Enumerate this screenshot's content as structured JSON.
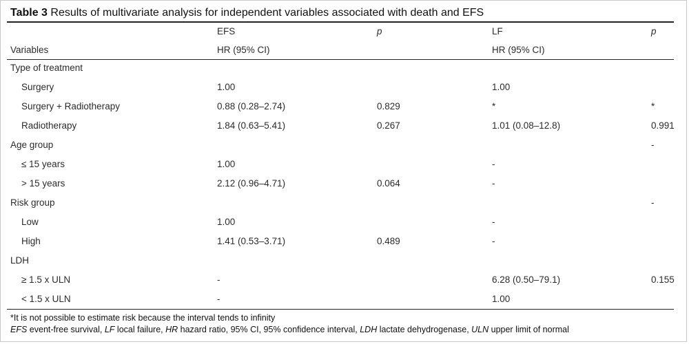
{
  "caption": {
    "label": "Table 3",
    "text": "Results of multivariate analysis for independent variables associated with death and EFS"
  },
  "headers": {
    "efs": "EFS",
    "p1": "p",
    "lf": "LF",
    "p2": "p",
    "variables": "Variables",
    "efs_hr": "HR (95% CI)",
    "lf_hr": "HR (95% CI)"
  },
  "rows": [
    {
      "label": "Type of treatment",
      "indent": false,
      "efs": "",
      "p1": "",
      "lf": "",
      "p2": ""
    },
    {
      "label": "Surgery",
      "indent": true,
      "efs": "1.00",
      "p1": "",
      "lf": "1.00",
      "p2": ""
    },
    {
      "label": "Surgery + Radiotherapy",
      "indent": true,
      "efs": "0.88 (0.28–2.74)",
      "p1": "0.829",
      "lf": "*",
      "p2": "*"
    },
    {
      "label": "Radiotherapy",
      "indent": true,
      "efs": "1.84 (0.63–5.41)",
      "p1": "0.267",
      "lf": "1.01 (0.08–12.8)",
      "p2": "0.991"
    },
    {
      "label": "Age group",
      "indent": false,
      "efs": "",
      "p1": "",
      "lf": "",
      "p2": "-"
    },
    {
      "label": "≤ 15 years",
      "indent": true,
      "efs": "1.00",
      "p1": "",
      "lf": "-",
      "p2": ""
    },
    {
      "label": "> 15 years",
      "indent": true,
      "efs": "2.12 (0.96–4.71)",
      "p1": "0.064",
      "lf": "-",
      "p2": ""
    },
    {
      "label": "Risk group",
      "indent": false,
      "efs": "",
      "p1": "",
      "lf": "",
      "p2": "-"
    },
    {
      "label": "Low",
      "indent": true,
      "efs": "1.00",
      "p1": "",
      "lf": "-",
      "p2": ""
    },
    {
      "label": "High",
      "indent": true,
      "efs": "1.41 (0.53–3.71)",
      "p1": "0.489",
      "lf": "-",
      "p2": ""
    },
    {
      "label": "LDH",
      "indent": false,
      "efs": "",
      "p1": "",
      "lf": "",
      "p2": ""
    },
    {
      "label": "≥ 1.5 x ULN",
      "indent": true,
      "efs": "-",
      "p1": "",
      "lf": "6.28 (0.50–79.1)",
      "p2": "0.155"
    },
    {
      "label": "< 1.5 x ULN",
      "indent": true,
      "efs": "-",
      "p1": "",
      "lf": "1.00",
      "p2": ""
    }
  ],
  "footnotes": {
    "line1": "*It is not possible to estimate risk because the interval tends to infinity",
    "efs_abbr": "EFS",
    "efs_def": " event-free survival, ",
    "lf_abbr": "LF",
    "lf_def": " local failure, ",
    "hr_abbr": "HR",
    "hr_def": " hazard ratio, 95% CI, 95% confidence interval, ",
    "ldh_abbr": "LDH",
    "ldh_def": " lactate dehydrogenase, ",
    "uln_abbr": "ULN",
    "uln_def": " upper limit of normal"
  }
}
